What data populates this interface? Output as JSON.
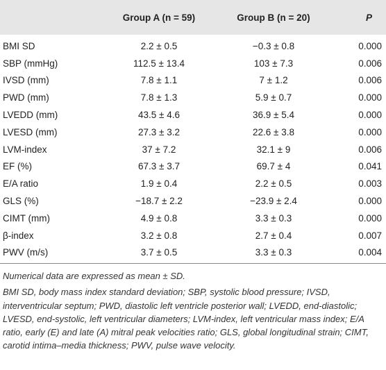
{
  "table": {
    "header": [
      "",
      "Group A (n = 59)",
      "Group B (n = 20)",
      "P"
    ],
    "rows": [
      [
        "BMI SD",
        "2.2 ± 0.5",
        "−0.3 ± 0.8",
        "0.000"
      ],
      [
        "SBP (mmHg)",
        "112.5 ± 13.4",
        "103 ± 7.3",
        "0.006"
      ],
      [
        "IVSD (mm)",
        "7.8 ± 1.1",
        "7 ± 1.2",
        "0.006"
      ],
      [
        "PWD (mm)",
        "7.8 ± 1.3",
        "5.9 ± 0.7",
        "0.000"
      ],
      [
        "LVEDD (mm)",
        "43.5 ± 4.6",
        "36.9 ± 5.4",
        "0.000"
      ],
      [
        "LVESD (mm)",
        "27.3 ± 3.2",
        "22.6 ± 3.8",
        "0.000"
      ],
      [
        "LVM-index",
        "37 ± 7.2",
        "32.1 ± 9",
        "0.006"
      ],
      [
        "EF (%)",
        "67.3 ± 3.7",
        "69.7 ± 4",
        "0.041"
      ],
      [
        "E/A ratio",
        "1.9 ± 0.4",
        "2.2 ± 0.5",
        "0.003"
      ],
      [
        "GLS (%)",
        "−18.7 ± 2.2",
        "−23.9 ± 2.4",
        "0.000"
      ],
      [
        "CIMT (mm)",
        "4.9 ± 0.8",
        "3.3 ± 0.3",
        "0.000"
      ],
      [
        "β-index",
        "3.2 ± 0.8",
        "2.7 ± 0.4",
        "0.007"
      ],
      [
        "PWV (m/s)",
        "3.7 ± 0.5",
        "3.3 ± 0.3",
        "0.004"
      ]
    ]
  },
  "notes": [
    "Numerical data are expressed as mean ± SD.",
    "BMI SD, body mass index standard deviation; SBP, systolic blood pressure; IVSD, interventricular septum; PWD, diastolic left ventricle posterior wall; LVEDD, end-diastolic; LVESD, end-systolic, left ventricular diameters; LVM-index, left ventricular mass index; E/A ratio, early (E) and late (A) mitral peak velocities ratio; GLS, global longitudinal strain; CIMT, carotid intima–media thickness; PWV, pulse wave velocity."
  ]
}
